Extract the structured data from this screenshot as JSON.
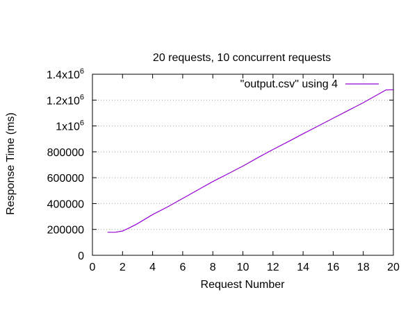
{
  "chart_data": {
    "type": "line",
    "title": "20 requests, 10 concurrent requests",
    "xlabel": "Request Number",
    "ylabel": "Response Time (ms)",
    "xlim": [
      0,
      20
    ],
    "ylim": [
      0,
      1400000
    ],
    "x_ticks": [
      {
        "value": 0,
        "label": "0"
      },
      {
        "value": 2,
        "label": "2"
      },
      {
        "value": 4,
        "label": "4"
      },
      {
        "value": 6,
        "label": "6"
      },
      {
        "value": 8,
        "label": "8"
      },
      {
        "value": 10,
        "label": "10"
      },
      {
        "value": 12,
        "label": "12"
      },
      {
        "value": 14,
        "label": "14"
      },
      {
        "value": 16,
        "label": "16"
      },
      {
        "value": 18,
        "label": "18"
      },
      {
        "value": 20,
        "label": "20"
      }
    ],
    "y_ticks": [
      {
        "value": 0,
        "label": "0",
        "sup": ""
      },
      {
        "value": 200000,
        "label": "200000",
        "sup": ""
      },
      {
        "value": 400000,
        "label": "400000",
        "sup": ""
      },
      {
        "value": 600000,
        "label": "600000",
        "sup": ""
      },
      {
        "value": 800000,
        "label": "800000",
        "sup": ""
      },
      {
        "value": 1000000,
        "label": "1x10",
        "sup": "6"
      },
      {
        "value": 1200000,
        "label": "1.2x10",
        "sup": "6"
      },
      {
        "value": 1400000,
        "label": "1.4x10",
        "sup": "6"
      }
    ],
    "grid": "horizontal dotted",
    "legend_position": "top-right",
    "series": [
      {
        "name": "\"output.csv\" using 4",
        "color": "#9400d3",
        "x": [
          1,
          1.5,
          2,
          2.5,
          3,
          4,
          5,
          6,
          7,
          8,
          9,
          10,
          11,
          12,
          13,
          14,
          15,
          16,
          17,
          18,
          19,
          19.5,
          20
        ],
        "y": [
          178000,
          178000,
          188000,
          215000,
          245000,
          315000,
          375000,
          440000,
          505000,
          570000,
          630000,
          690000,
          755000,
          818000,
          878000,
          940000,
          1000000,
          1060000,
          1120000,
          1180000,
          1245000,
          1278000,
          1280000
        ]
      }
    ]
  }
}
